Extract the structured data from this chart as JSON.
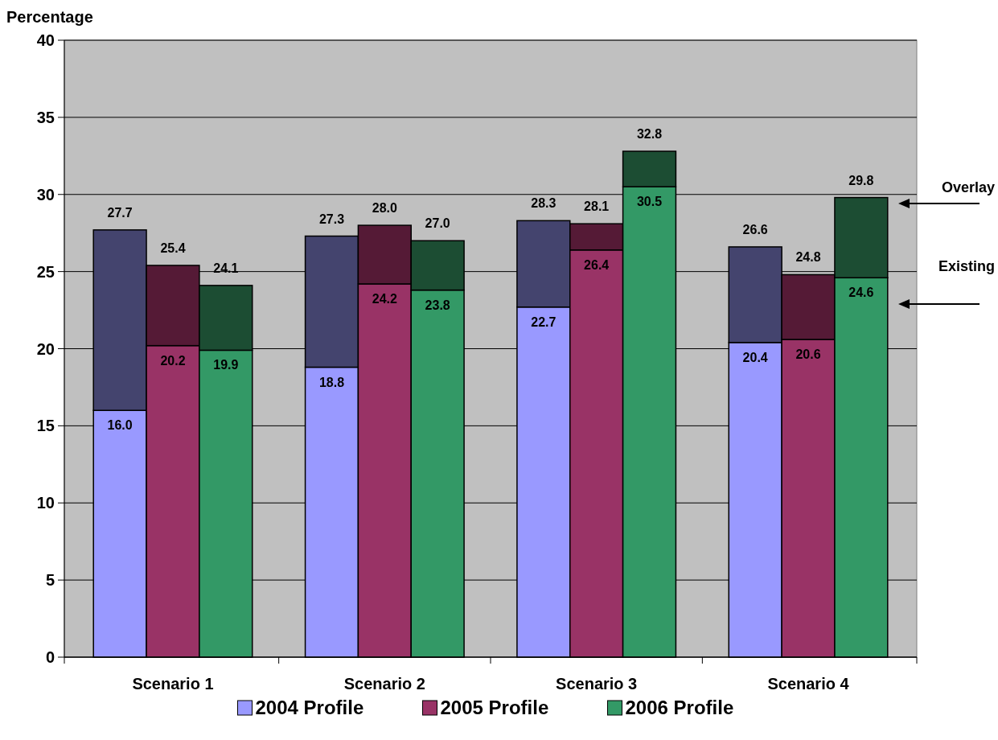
{
  "chart_data": {
    "type": "bar",
    "stacked": true,
    "ylabel": "Percentage",
    "categories": [
      null,
      "Scenario 1",
      null,
      null,
      null,
      "Scenario 2",
      null,
      null,
      null,
      "Scenario 3",
      null,
      null,
      null,
      "Scenario 4",
      null
    ],
    "series": [
      {
        "name": "2004 Profile",
        "color": "#9999ff",
        "values": [
          16.0,
          null,
          null,
          null,
          18.8,
          null,
          null,
          null,
          22.7,
          null,
          null,
          null,
          20.4,
          null,
          null
        ],
        "value_labels": [
          "16.0",
          null,
          null,
          null,
          "18.8",
          null,
          null,
          null,
          "22.7",
          null,
          null,
          null,
          "20.4",
          null,
          null
        ]
      },
      {
        "color": "#44446e",
        "values": [
          11.7,
          null,
          null,
          null,
          8.5,
          null,
          null,
          null,
          5.6,
          null,
          null,
          null,
          6.2,
          null,
          null
        ]
      },
      {
        "name": "2005 Profile",
        "color": "#993366",
        "values": [
          null,
          20.2,
          null,
          null,
          null,
          24.2,
          null,
          null,
          null,
          26.4,
          null,
          null,
          null,
          20.6,
          null
        ],
        "value_labels": [
          null,
          "20.2",
          null,
          null,
          null,
          "24.2",
          null,
          null,
          null,
          "26.4",
          null,
          null,
          null,
          "20.6",
          null
        ]
      },
      {
        "color": "#551a36",
        "values": [
          null,
          5.2,
          null,
          null,
          null,
          3.8,
          null,
          null,
          null,
          1.7,
          null,
          null,
          null,
          4.2,
          null
        ]
      },
      {
        "name": "2006 Profile",
        "color": "#339966",
        "values": [
          null,
          null,
          19.9,
          null,
          null,
          null,
          23.8,
          null,
          null,
          null,
          30.5,
          null,
          null,
          null,
          24.6
        ],
        "value_labels": [
          null,
          null,
          "19.9",
          null,
          null,
          null,
          "23.8",
          null,
          null,
          null,
          "30.5",
          null,
          null,
          null,
          "24.6"
        ]
      },
      {
        "color": "#1c4d33",
        "values": [
          null,
          null,
          4.2,
          null,
          null,
          null,
          3.2,
          null,
          null,
          null,
          2.3,
          null,
          null,
          null,
          5.2
        ]
      }
    ],
    "totals": [
      "27.7",
      "25.4",
      "24.1",
      null,
      "27.3",
      "28.0",
      "27.0",
      null,
      "28.3",
      "28.1",
      "32.8",
      null,
      "26.6",
      "24.8",
      "29.8"
    ],
    "ylim": [
      0,
      40
    ],
    "yticks": [
      0,
      5,
      10,
      15,
      20,
      25,
      30,
      35,
      40
    ],
    "grid": "y",
    "legend": "bottom",
    "annotations": [
      "Overlay",
      "Existing"
    ]
  }
}
